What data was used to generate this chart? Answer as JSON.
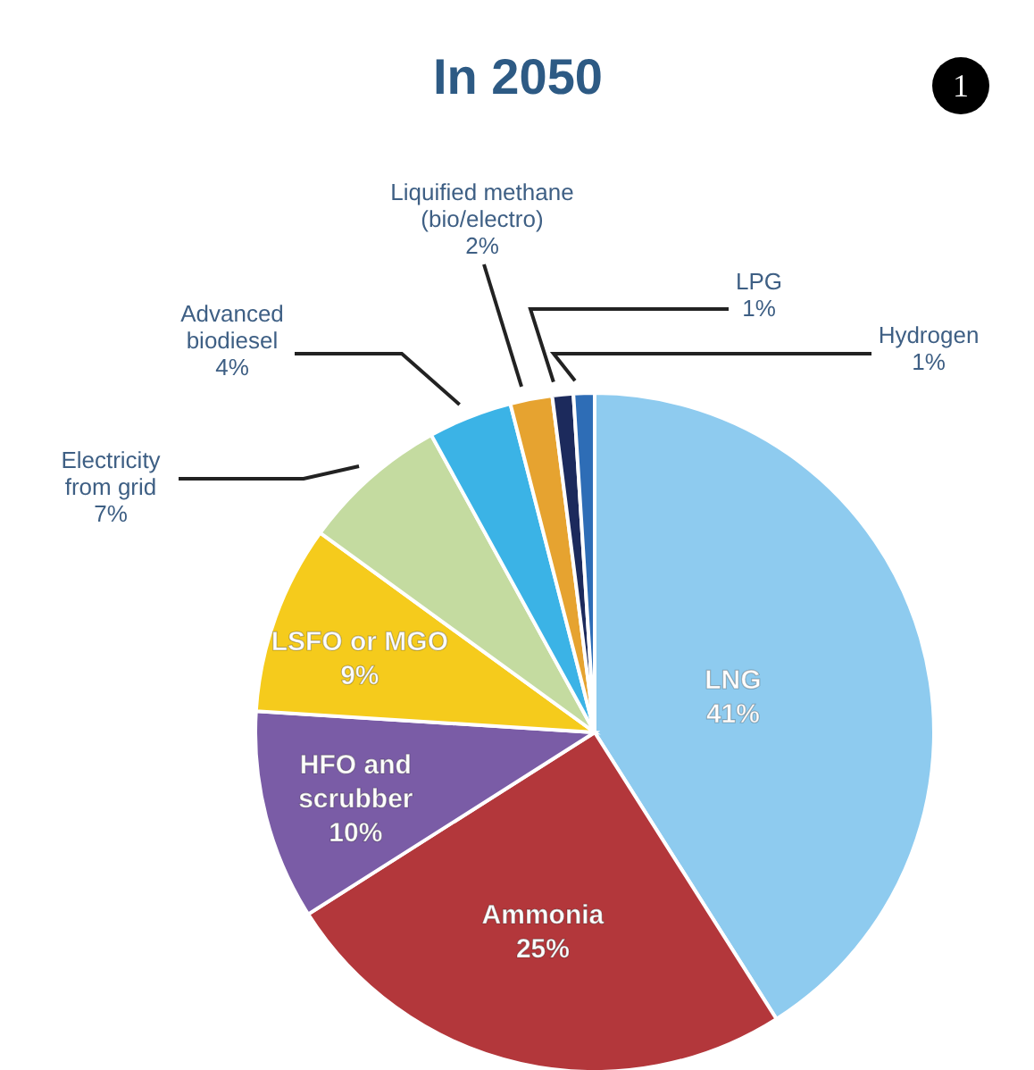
{
  "chart_data": {
    "type": "pie",
    "title": "In 2050",
    "categories": [
      "LNG",
      "Ammonia",
      "HFO and scrubber",
      "LSFO or MGO",
      "Electricity from grid",
      "Advanced biodiesel",
      "Liquified methane (bio/electro)",
      "LPG",
      "Hydrogen"
    ],
    "values": [
      41,
      25,
      10,
      9,
      7,
      4,
      2,
      1,
      1
    ],
    "value_labels": [
      "41%",
      "25%",
      "10%",
      "9%",
      "7%",
      "4%",
      "2%",
      "1%",
      "1%"
    ],
    "colors": [
      "#8ecbef",
      "#b3373b",
      "#7a5ca6",
      "#f5cb1c",
      "#c4dba0",
      "#3bb3e6",
      "#e6a330",
      "#1c2a5c",
      "#2e6db6"
    ],
    "annotations": [
      "1"
    ]
  }
}
